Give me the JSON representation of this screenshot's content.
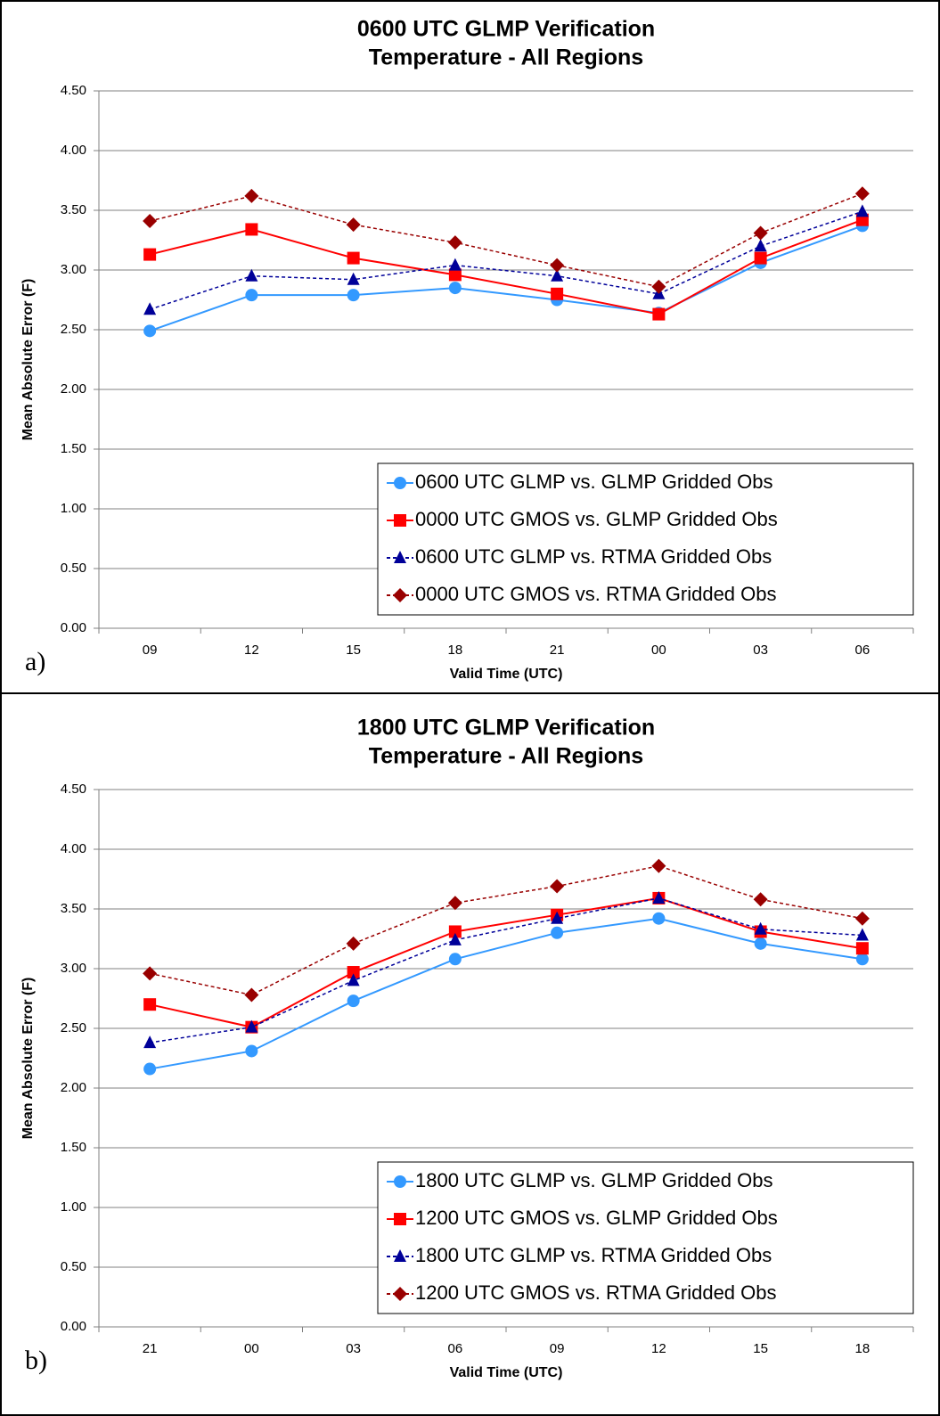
{
  "chart_data": [
    {
      "type": "line",
      "panel_label": "a)",
      "title": [
        "0600 UTC GLMP Verification",
        "Temperature - All Regions"
      ],
      "y_label": "Mean Absolute Error (F)",
      "x_label": "Valid Time (UTC)",
      "categories": [
        "09",
        "12",
        "15",
        "18",
        "21",
        "00",
        "03",
        "06"
      ],
      "ylim": [
        0,
        4.5
      ],
      "yticks": [
        {
          "value": 0,
          "label": "0.00"
        },
        {
          "value": 0.5,
          "label": "0.50"
        },
        {
          "value": 1,
          "label": "1.00"
        },
        {
          "value": 1.5,
          "label": "1.50"
        },
        {
          "value": 2,
          "label": "2.00"
        },
        {
          "value": 2.5,
          "label": "2.50"
        },
        {
          "value": 3,
          "label": "3.00"
        },
        {
          "value": 3.5,
          "label": "3.50"
        },
        {
          "value": 4,
          "label": "4.00"
        },
        {
          "value": 4.5,
          "label": "4.50"
        }
      ],
      "grid": true,
      "legend": "lower right",
      "series": [
        {
          "name": "0600 UTC GLMP vs. GLMP Gridded Obs",
          "color": "#3399ff",
          "marker": "circle",
          "line_style": "solid",
          "values": [
            2.49,
            2.79,
            2.79,
            2.85,
            2.75,
            2.64,
            3.06,
            3.37
          ]
        },
        {
          "name": "0000 UTC GMOS vs. GLMP Gridded Obs",
          "color": "#ff0000",
          "marker": "square",
          "line_style": "solid",
          "values": [
            3.13,
            3.34,
            3.1,
            2.96,
            2.8,
            2.63,
            3.1,
            3.42
          ]
        },
        {
          "name": "0600 UTC GLMP vs. RTMA Gridded Obs",
          "color": "#000099",
          "marker": "triangle",
          "line_style": "dashed",
          "values": [
            2.67,
            2.95,
            2.92,
            3.04,
            2.95,
            2.8,
            3.2,
            3.49
          ]
        },
        {
          "name": "0000 UTC GMOS vs. RTMA Gridded Obs",
          "color": "#990000",
          "marker": "diamond",
          "line_style": "dashed",
          "values": [
            3.41,
            3.62,
            3.38,
            3.23,
            3.04,
            2.86,
            3.31,
            3.64
          ]
        }
      ]
    },
    {
      "type": "line",
      "panel_label": "b)",
      "title": [
        "1800 UTC GLMP Verification",
        "Temperature - All Regions"
      ],
      "y_label": "Mean Absolute Error (F)",
      "x_label": "Valid Time (UTC)",
      "categories": [
        "21",
        "00",
        "03",
        "06",
        "09",
        "12",
        "15",
        "18"
      ],
      "ylim": [
        0,
        4.5
      ],
      "yticks": [
        {
          "value": 0,
          "label": "0.00"
        },
        {
          "value": 0.5,
          "label": "0.50"
        },
        {
          "value": 1,
          "label": "1.00"
        },
        {
          "value": 1.5,
          "label": "1.50"
        },
        {
          "value": 2,
          "label": "2.00"
        },
        {
          "value": 2.5,
          "label": "2.50"
        },
        {
          "value": 3,
          "label": "3.00"
        },
        {
          "value": 3.5,
          "label": "3.50"
        },
        {
          "value": 4,
          "label": "4.00"
        },
        {
          "value": 4.5,
          "label": "4.50"
        }
      ],
      "grid": true,
      "legend": "lower right",
      "series": [
        {
          "name": "1800 UTC GLMP vs. GLMP Gridded Obs",
          "color": "#3399ff",
          "marker": "circle",
          "line_style": "solid",
          "values": [
            2.16,
            2.31,
            2.73,
            3.08,
            3.3,
            3.42,
            3.21,
            3.08
          ]
        },
        {
          "name": "1200 UTC GMOS vs. GLMP Gridded Obs",
          "color": "#ff0000",
          "marker": "square",
          "line_style": "solid",
          "values": [
            2.7,
            2.51,
            2.97,
            3.31,
            3.45,
            3.59,
            3.31,
            3.17
          ]
        },
        {
          "name": "1800 UTC GLMP vs. RTMA Gridded Obs",
          "color": "#000099",
          "marker": "triangle",
          "line_style": "dashed",
          "values": [
            2.38,
            2.51,
            2.9,
            3.24,
            3.42,
            3.59,
            3.33,
            3.28
          ]
        },
        {
          "name": "1200 UTC GMOS vs. RTMA Gridded Obs",
          "color": "#990000",
          "marker": "diamond",
          "line_style": "dashed",
          "values": [
            2.96,
            2.78,
            3.21,
            3.55,
            3.69,
            3.86,
            3.58,
            3.42
          ]
        }
      ]
    }
  ]
}
